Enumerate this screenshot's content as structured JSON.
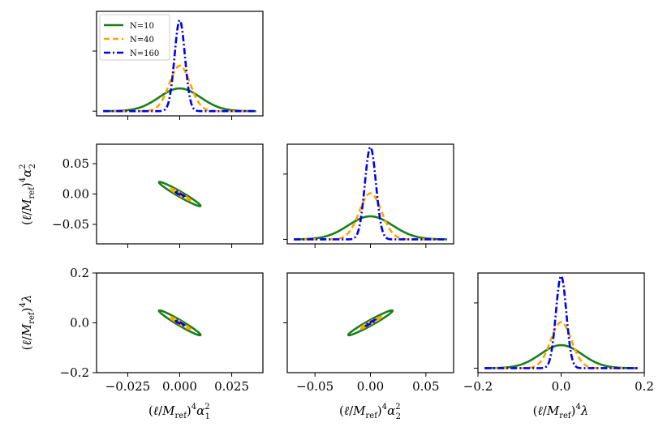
{
  "chart_data": {
    "type": "corner",
    "colors": {
      "N=10": "#1a7f1a",
      "N=40": "#ffa500",
      "N=160": "#0000ee"
    },
    "legend": {
      "entries": [
        "N=10",
        "N=40",
        "N=160"
      ],
      "placement": "top-left"
    },
    "parameters": [
      "alpha1_sq",
      "alpha2_sq",
      "lambda"
    ],
    "series": [
      {
        "name": "N=10",
        "sigma": [
          0.01,
          0.02,
          0.05
        ],
        "rho_contour_sizes": [
          0.02,
          0.04,
          0.1
        ]
      },
      {
        "name": "N=40",
        "sigma": [
          0.005,
          0.01,
          0.025
        ]
      },
      {
        "name": "N=160",
        "sigma": [
          0.0025,
          0.005,
          0.0125
        ]
      }
    ],
    "correlations": {
      "alpha1_alpha2": -0.97,
      "alpha1_lambda": -0.97,
      "alpha2_lambda": 0.97
    },
    "axes": {
      "alpha1_sq": {
        "range": [
          -0.04,
          0.04
        ],
        "ticks": [
          -0.025,
          0.0,
          0.025
        ],
        "tick_labels": [
          "−0.025",
          "0.000",
          "0.025"
        ]
      },
      "alpha2_sq": {
        "range": [
          -0.075,
          0.075
        ],
        "ticks": [
          -0.05,
          0.0,
          0.05
        ],
        "tick_labels": [
          "−0.05",
          "0.00",
          "0.05"
        ]
      },
      "lambda": {
        "range": [
          -0.2,
          0.2
        ],
        "ticks": [
          -0.2,
          0.0,
          0.2
        ],
        "tick_labels": [
          "−0.2",
          "0.0",
          "0.2"
        ]
      }
    },
    "labels": {
      "x_alpha1": "(ℓ/M_ref)⁴ α₁²",
      "x_alpha2": "(ℓ/M_ref)⁴ α₂²",
      "x_lambda": "(ℓ/M_ref)⁴ λ",
      "y_alpha2": "(ℓ/M_ref)⁴ α₂²",
      "y_lambda": "(ℓ/M_ref)⁴ λ"
    }
  }
}
